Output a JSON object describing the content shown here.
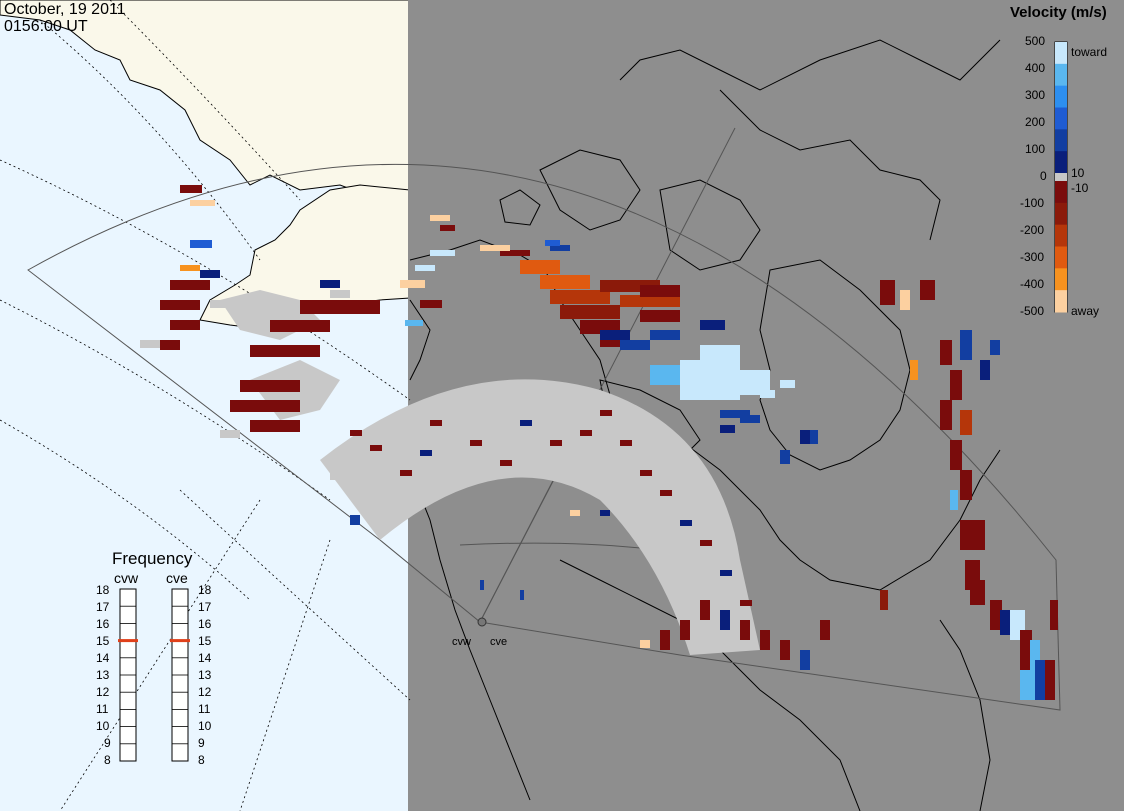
{
  "header": {
    "date": "October, 19 2011",
    "time": "0156:00 UT"
  },
  "velocity_scale": {
    "title": "Velocity (m/s)",
    "ticks": [
      "500",
      "400",
      "300",
      "200",
      "100",
      "0",
      "-100",
      "-200",
      "-300",
      "-400",
      "-500"
    ],
    "labels": {
      "toward": "toward",
      "away": "away",
      "pos_threshold": "10",
      "neg_threshold": "-10"
    },
    "colors": [
      "#c8e8fc",
      "#5ab7ef",
      "#2d8ff0",
      "#1f5cd3",
      "#123ea1",
      "#0a1f7b",
      "#7a0c0c",
      "#8b1a0a",
      "#b5360a",
      "#e05a10",
      "#f7921f",
      "#fcd0a0"
    ]
  },
  "frequency_panel": {
    "title": "Frequency",
    "radars": [
      {
        "name": "cvw",
        "frequency_mhz": 15
      },
      {
        "name": "cve",
        "frequency_mhz": 15
      }
    ],
    "scale": [
      "18",
      "17",
      "16",
      "15",
      "14",
      "13",
      "12",
      "11",
      "10",
      "9",
      "8"
    ]
  },
  "stations": [
    {
      "name": "cvw"
    },
    {
      "name": "cve"
    }
  ],
  "colors": {
    "ocean_day": "#eaf6ff",
    "land_day": "#faf8ea",
    "night": "#8e8e8e",
    "ground_scatter": "#c8c8c8",
    "marker": "#e0401a"
  }
}
